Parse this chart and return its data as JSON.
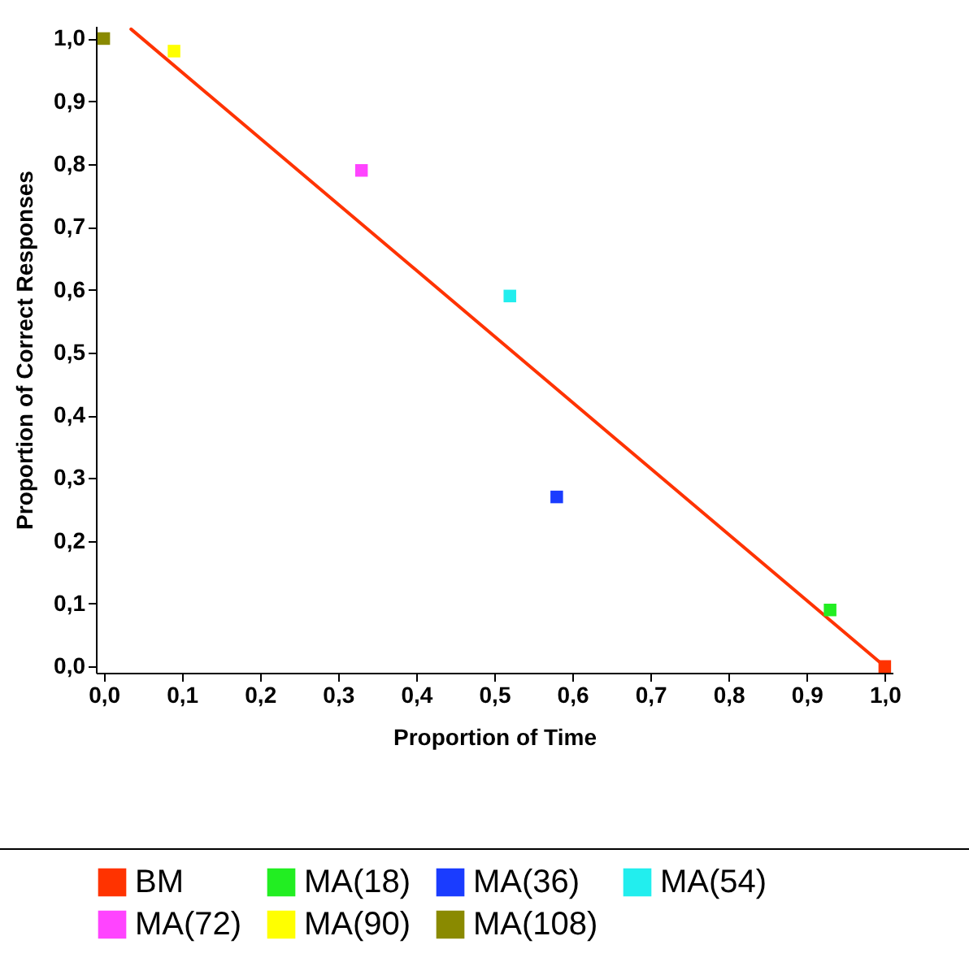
{
  "chart_data": {
    "type": "scatter",
    "xlabel": "Proportion of Time",
    "ylabel": "Proportion of Correct Responses",
    "xlim": [
      -0.01,
      1.01
    ],
    "ylim": [
      -0.01,
      1.02
    ],
    "xticks": [
      {
        "value": 0,
        "label": "0,0"
      },
      {
        "value": 0.1,
        "label": "0,1"
      },
      {
        "value": 0.2,
        "label": "0,2"
      },
      {
        "value": 0.3,
        "label": "0,3"
      },
      {
        "value": 0.4,
        "label": "0,4"
      },
      {
        "value": 0.5,
        "label": "0,5"
      },
      {
        "value": 0.6,
        "label": "0,6"
      },
      {
        "value": 0.7,
        "label": "0,7"
      },
      {
        "value": 0.8,
        "label": "0,8"
      },
      {
        "value": 0.9,
        "label": "0,9"
      },
      {
        "value": 1,
        "label": "1,0"
      }
    ],
    "yticks": [
      {
        "value": 0,
        "label": "0,0"
      },
      {
        "value": 0.1,
        "label": "0,1"
      },
      {
        "value": 0.2,
        "label": "0,2"
      },
      {
        "value": 0.3,
        "label": "0,3"
      },
      {
        "value": 0.4,
        "label": "0,4"
      },
      {
        "value": 0.5,
        "label": "0,5"
      },
      {
        "value": 0.6,
        "label": "0,6"
      },
      {
        "value": 0.7,
        "label": "0,7"
      },
      {
        "value": 0.8,
        "label": "0,8"
      },
      {
        "value": 0.9,
        "label": "0,9"
      },
      {
        "value": 1,
        "label": "1,0"
      }
    ],
    "marker": "square",
    "legend": "bottom",
    "grid": false,
    "series": [
      {
        "type": "line",
        "marker": "none",
        "color": "#ff3300",
        "x": [
          0.035,
          1.0
        ],
        "values": [
          1.015,
          0.0
        ]
      },
      {
        "name": "BM",
        "color": "#ff3300",
        "x": [
          1.0
        ],
        "values": [
          0.0
        ]
      },
      {
        "name": "MA(18)",
        "color": "#22ee22",
        "x": [
          0.93
        ],
        "values": [
          0.09
        ]
      },
      {
        "name": "MA(36)",
        "color": "#1a3cff",
        "x": [
          0.58
        ],
        "values": [
          0.27
        ]
      },
      {
        "name": "MA(54)",
        "color": "#22eeee",
        "x": [
          0.52
        ],
        "values": [
          0.59
        ]
      },
      {
        "name": "MA(72)",
        "color": "#ff44ff",
        "x": [
          0.33
        ],
        "values": [
          0.79
        ]
      },
      {
        "name": "MA(90)",
        "color": "#ffff00",
        "x": [
          0.09
        ],
        "values": [
          0.98
        ]
      },
      {
        "name": "MA(108)",
        "color": "#8a8a00",
        "x": [
          0.0
        ],
        "values": [
          1.0
        ]
      }
    ]
  }
}
